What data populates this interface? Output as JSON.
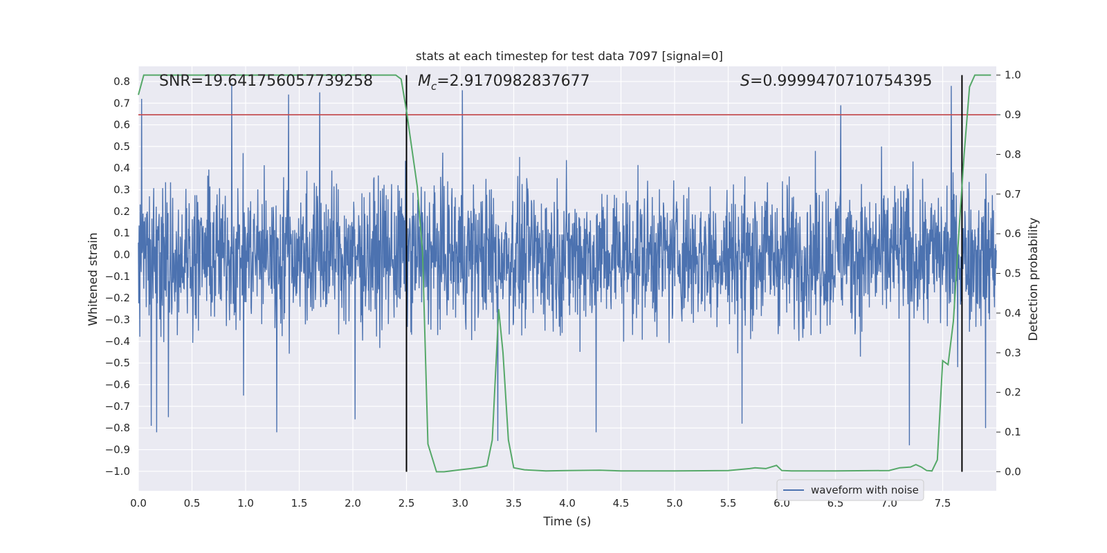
{
  "chart_data": {
    "type": "line",
    "title": "stats at each timestep for test data 7097 [signal=0]",
    "xlabel": "Time (s)",
    "ylabel": "Whitened strain",
    "y2label": "Detection probability",
    "xlim": [
      0.0,
      8.0
    ],
    "ylim": [
      -1.09,
      0.87
    ],
    "y2lim": [
      -0.048,
      1.022
    ],
    "x_ticks": [
      "0.0",
      "0.5",
      "1.0",
      "1.5",
      "2.0",
      "2.5",
      "3.0",
      "3.5",
      "4.0",
      "4.5",
      "5.0",
      "5.5",
      "6.0",
      "6.5",
      "7.0",
      "7.5"
    ],
    "y_ticks": [
      "0.8",
      "0.7",
      "0.6",
      "0.5",
      "0.4",
      "0.3",
      "0.2",
      "0.1",
      "0.0",
      "−0.1",
      "−0.2",
      "−0.3",
      "−0.4",
      "−0.5",
      "−0.6",
      "−0.7",
      "−0.8",
      "−0.9",
      "−1.0"
    ],
    "y2_ticks": [
      "1.0",
      "0.9",
      "0.8",
      "0.7",
      "0.6",
      "0.5",
      "0.4",
      "0.3",
      "0.2",
      "0.1",
      "0.0"
    ],
    "annotations": {
      "snr": "SNR=19.641756057739258",
      "mc_symbol": "M",
      "mc_sub": "c",
      "mc_value": "=2.9170982837677",
      "s_symbol": "S",
      "s_value": "=0.9999470710754395"
    },
    "legend": {
      "placement": "lower right",
      "entries": [
        "waveform with noise"
      ]
    },
    "grid": true,
    "colors": {
      "background": "#eaeaf2",
      "waveform": "#4c72b0",
      "probability": "#55a868",
      "threshold": "#c44e52",
      "markers": "#000000",
      "grid": "#ffffff"
    },
    "threshold_probability": 0.9,
    "vertical_markers_x": [
      2.5,
      7.68
    ],
    "waveform": {
      "name": "waveform with noise",
      "typical_envelope": [
        -0.43,
        0.43
      ],
      "peaks": [
        {
          "x": 0.03,
          "y": 0.72
        },
        {
          "x": 0.12,
          "y": -0.79
        },
        {
          "x": 0.17,
          "y": -0.82
        },
        {
          "x": 0.28,
          "y": -0.75
        },
        {
          "x": 0.87,
          "y": 0.79
        },
        {
          "x": 0.98,
          "y": -0.65
        },
        {
          "x": 1.29,
          "y": -0.82
        },
        {
          "x": 1.4,
          "y": 0.74
        },
        {
          "x": 1.69,
          "y": 0.75
        },
        {
          "x": 2.02,
          "y": -0.76
        },
        {
          "x": 3.02,
          "y": 0.76
        },
        {
          "x": 3.35,
          "y": -0.86
        },
        {
          "x": 4.27,
          "y": -0.82
        },
        {
          "x": 5.63,
          "y": -0.78
        },
        {
          "x": 6.55,
          "y": 0.69
        },
        {
          "x": 7.19,
          "y": -0.88
        },
        {
          "x": 7.58,
          "y": 0.78
        },
        {
          "x": 7.9,
          "y": -0.8
        }
      ]
    },
    "probability": {
      "x": [
        0.0,
        0.05,
        0.1,
        2.3,
        2.4,
        2.45,
        2.5,
        2.6,
        2.65,
        2.7,
        2.78,
        2.85,
        3.0,
        3.1,
        3.2,
        3.25,
        3.3,
        3.36,
        3.4,
        3.45,
        3.5,
        3.6,
        3.8,
        4.0,
        4.3,
        4.4,
        4.5,
        5.0,
        5.5,
        5.7,
        5.75,
        5.85,
        5.95,
        6.0,
        6.1,
        6.5,
        7.0,
        7.1,
        7.2,
        7.25,
        7.3,
        7.35,
        7.4,
        7.45,
        7.5,
        7.55,
        7.6,
        7.65,
        7.7,
        7.75,
        7.8,
        7.85,
        7.95
      ],
      "y": [
        0.95,
        1.0,
        1.0,
        1.0,
        1.0,
        0.99,
        0.91,
        0.72,
        0.55,
        0.07,
        0.0,
        0.0,
        0.005,
        0.008,
        0.012,
        0.015,
        0.08,
        0.41,
        0.3,
        0.08,
        0.01,
        0.005,
        0.002,
        0.003,
        0.004,
        0.003,
        0.002,
        0.002,
        0.003,
        0.008,
        0.01,
        0.008,
        0.016,
        0.003,
        0.002,
        0.002,
        0.003,
        0.01,
        0.012,
        0.018,
        0.012,
        0.003,
        0.002,
        0.03,
        0.28,
        0.27,
        0.38,
        0.6,
        0.8,
        0.97,
        1.0,
        1.0,
        1.0
      ]
    }
  }
}
